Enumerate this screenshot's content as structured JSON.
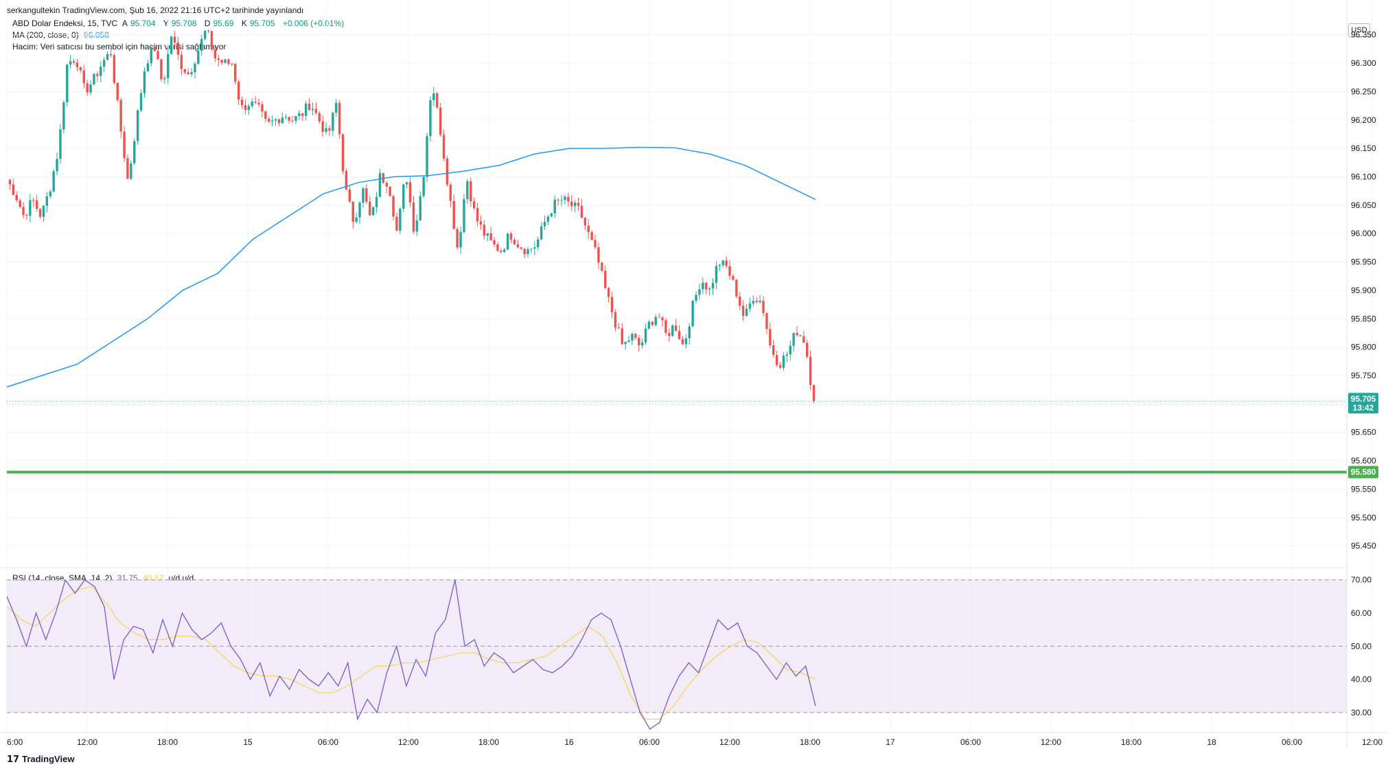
{
  "published_line": "serkangultekin TradingView.com, Şub 16, 2022 21:16 UTC+2 tarihinde yayınlandı",
  "legend": {
    "symbol": "ABD Dolar Endeksi, 15, TVC",
    "open_label": "A",
    "open": "95.704",
    "high_label": "Y",
    "high": "95.708",
    "low_label": "D",
    "low": "95.69",
    "close_label": "K",
    "close": "95.705",
    "change": "+0.006 (+0.01%)",
    "ma_label": "MA (200, close, 0)",
    "ma_value": "96.058",
    "volume_text": "Hacim: Veri satıcısı bu sembol için hacim verisi sağlamıyor",
    "rsi_label": "RSI (14, close, SMA, 14, 2)",
    "rsi_value": "31.75",
    "rsi_ma_value": "40.17",
    "rsi_extra": "u/d  u/d"
  },
  "currency": "USD",
  "brand": "TradingView",
  "colors": {
    "up": "#26a69a",
    "down": "#ef5350",
    "ma": "#2196f3",
    "rsi": "#7e57c2",
    "rsi_ma": "#f6cf3b",
    "level": "#4caf50",
    "price_tag": "#26a69a",
    "rsi_band": "#ede7f6"
  },
  "chart_data": {
    "type": "candlestick",
    "y_axis": {
      "ylim": [
        95.42,
        96.375
      ],
      "ticks": [
        "96.350",
        "96.300",
        "96.250",
        "96.200",
        "96.150",
        "96.100",
        "96.050",
        "96.000",
        "95.950",
        "95.900",
        "95.850",
        "95.800",
        "95.750",
        "95.700",
        "95.650",
        "95.600",
        "95.550",
        "95.500",
        "95.450"
      ]
    },
    "x_axis": {
      "ticks": [
        "6:00",
        "12:00",
        "18:00",
        "15",
        "06:00",
        "12:00",
        "18:00",
        "16",
        "06:00",
        "12:00",
        "18:00",
        "17",
        "06:00",
        "12:00",
        "18:00",
        "18",
        "06:00",
        "12:00"
      ]
    },
    "last_price": {
      "value": 95.705,
      "label": "95.705",
      "countdown": "13:42"
    },
    "horizontal_level": {
      "value": 95.58,
      "label": "95.580"
    },
    "price_path": [
      96.095,
      96.07,
      96.03,
      96.06,
      96.03,
      96.08,
      96.15,
      96.3,
      96.31,
      96.25,
      96.27,
      96.3,
      96.32,
      96.2,
      96.09,
      96.2,
      96.3,
      96.33,
      96.26,
      96.35,
      96.3,
      96.28,
      96.32,
      96.36,
      96.31,
      96.3,
      96.3,
      96.22,
      96.23,
      96.22,
      96.19,
      96.2,
      96.21,
      96.2,
      96.21,
      96.23,
      96.2,
      96.17,
      96.23,
      96.08,
      96.02,
      96.08,
      96.02,
      96.1,
      96.09,
      96.0,
      96.11,
      96.0,
      96.1,
      96.27,
      96.18,
      96.07,
      95.97,
      96.1,
      96.03,
      96.0,
      95.98,
      95.97,
      96.0,
      95.98,
      95.97,
      95.98,
      96.02,
      96.05,
      96.06,
      96.05,
      96.04,
      96.0,
      95.96,
      95.9,
      95.85,
      95.8,
      95.82,
      95.8,
      95.84,
      95.86,
      95.82,
      95.84,
      95.8,
      95.87,
      95.92,
      95.9,
      95.95,
      95.94,
      95.9,
      95.85,
      95.89,
      95.88,
      95.8,
      95.77,
      95.79,
      95.83,
      95.81,
      95.7
    ],
    "ma200_path": [
      95.73,
      95.75,
      95.77,
      95.81,
      95.85,
      95.9,
      95.93,
      95.99,
      96.03,
      96.07,
      96.09,
      96.1,
      96.102,
      96.11,
      96.12,
      96.14,
      96.15,
      96.15,
      96.152,
      96.151,
      96.14,
      96.12,
      96.09,
      96.06
    ],
    "rsi": {
      "ylim": [
        25,
        72
      ],
      "ticks": [
        "70.00",
        "60.00",
        "50.00",
        "40.00",
        "30.00"
      ],
      "upper_band": 70,
      "lower_band": 30,
      "mid_line": 50,
      "rsi_path": [
        65,
        58,
        50,
        60,
        52,
        60,
        70,
        66,
        70,
        68,
        62,
        40,
        52,
        56,
        55,
        48,
        58,
        50,
        60,
        55,
        52,
        54,
        57,
        50,
        46,
        40,
        45,
        35,
        41,
        37,
        43,
        40,
        38,
        42,
        38,
        45,
        28,
        34,
        30,
        42,
        50,
        38,
        46,
        41,
        54,
        58,
        70,
        50,
        52,
        44,
        48,
        46,
        42,
        44,
        46,
        43,
        42,
        44,
        47,
        52,
        58,
        60,
        58,
        50,
        40,
        30,
        25,
        27,
        35,
        41,
        45,
        42,
        50,
        58,
        55,
        57,
        50,
        48,
        44,
        40,
        45,
        41,
        44,
        32
      ],
      "rsi_ma_path": [
        62,
        58,
        56,
        60,
        64,
        67,
        68,
        63,
        57,
        54,
        52,
        52,
        53,
        53,
        52,
        48,
        44,
        42,
        41,
        41,
        40,
        38,
        36,
        36,
        38,
        41,
        44,
        44,
        45,
        45,
        46,
        47,
        48,
        48,
        46,
        45,
        45,
        46,
        47,
        50,
        53,
        56,
        53,
        45,
        35,
        28,
        28,
        32,
        38,
        43,
        47,
        50,
        52,
        51,
        47,
        43,
        42,
        40
      ]
    }
  }
}
